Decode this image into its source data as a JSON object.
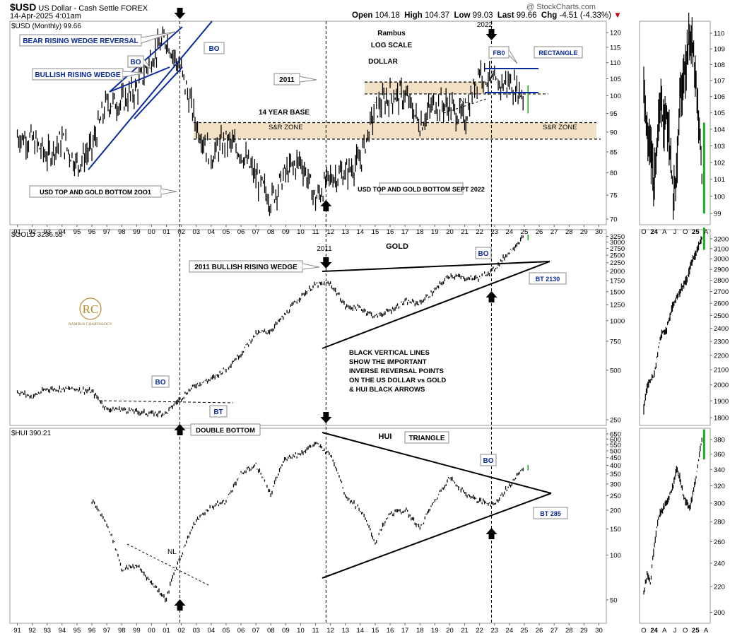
{
  "header": {
    "symbol": "$USD",
    "description": "US Dollar - Cash Settle  FOREX",
    "date": "14-Apr-2025 4:01am",
    "quote_open_label": "Open",
    "quote_open": "104.18",
    "quote_high_label": "High",
    "quote_high": "104.37",
    "quote_low_label": "Low",
    "quote_low": "99.03",
    "quote_last_label": "Last",
    "quote_last": "99.66",
    "quote_chg_label": "Chg",
    "quote_chg": "-4.51 (-4.33%)",
    "chg_arrow": "▼",
    "watermark": "@ StockCharts.com"
  },
  "colors": {
    "candle": "#000000",
    "annotation_blue": "#0a2a9c",
    "zone_fill": "#f3e1c6",
    "up_bar": "#22aa22",
    "down_bar": "#22aa22"
  },
  "logo": {
    "letters": "RC",
    "text": "RAMBUS CHARTOLOGY"
  },
  "chart_data": [
    {
      "type": "candlestick",
      "panel": "USD monthly",
      "title": "$USD (Monthly) 99.66",
      "scale": "log",
      "ylim": [
        70,
        122
      ],
      "y_ticks": [
        "120",
        "115",
        "110",
        "105",
        "100",
        "95",
        "90",
        "85",
        "80",
        "75",
        "70"
      ],
      "x_ticks": [
        "91",
        "92",
        "93",
        "94",
        "95",
        "96",
        "97",
        "98",
        "99",
        "00",
        "01",
        "02",
        "03",
        "04",
        "05",
        "06",
        "07",
        "08",
        "09",
        "10",
        "11",
        "12",
        "13",
        "14",
        "15",
        "16",
        "17",
        "18",
        "19",
        "20",
        "21",
        "22",
        "23",
        "24",
        "25",
        "26",
        "27",
        "28",
        "29",
        "30"
      ],
      "x": [
        1991,
        1992,
        1993,
        1994,
        1995,
        1996,
        1997,
        1998,
        1999,
        2000,
        2001,
        2002,
        2003,
        2004,
        2005,
        2006,
        2007,
        2008,
        2009,
        2010,
        2011,
        2012,
        2013,
        2014,
        2015,
        2016,
        2017,
        2018,
        2019,
        2020,
        2021,
        2022,
        2023,
        2024,
        2025
      ],
      "values": [
        89,
        88,
        84,
        88,
        82,
        86,
        98,
        98,
        102,
        112,
        118,
        107,
        92,
        84,
        88,
        85,
        79,
        74,
        80,
        83,
        74,
        79,
        80,
        83,
        96,
        100,
        100,
        92,
        98,
        97,
        93,
        108,
        103,
        104,
        100
      ],
      "annotations": {
        "center": [
          "Rambus",
          "LOG SCALE",
          "DOLLAR"
        ],
        "callouts": [
          "BEAR RISING WEDGE REVERSAL",
          "BO",
          "BULLISH RISING WEDGE",
          "BO",
          "2011",
          "USD TOP AND GOLD BOTTOM 2OO1",
          "USD TOP AND GOLD BOTTOM  SEPT 2022",
          "FB0",
          "RECTANGLE"
        ],
        "labels": [
          "2022",
          "NL",
          "14 YEAR BASE",
          "S&R ZONE",
          "S&R ZONE"
        ]
      }
    },
    {
      "type": "candlestick",
      "panel": "USD weekly inset",
      "scale": "log",
      "ylim": [
        98.6,
        110.5
      ],
      "y_ticks": [
        "110",
        "109",
        "108",
        "107",
        "106",
        "105",
        "104",
        "103",
        "102",
        "101",
        "100",
        "99"
      ],
      "x_ticks": [
        "O",
        "24",
        "A",
        "J",
        "O",
        "25",
        "A"
      ],
      "values": [
        106,
        104,
        103,
        101,
        103,
        106,
        104,
        105,
        103,
        100,
        101,
        106,
        107,
        108,
        110,
        109,
        107,
        104,
        100
      ]
    },
    {
      "type": "candlestick",
      "panel": "GOLD monthly",
      "title": "$GOLD 3236.55",
      "scale": "log",
      "ylim": [
        250,
        3300
      ],
      "y_ticks": [
        "3250",
        "3000",
        "2750",
        "2500",
        "2250",
        "2000",
        "1750",
        "1500",
        "1250",
        "1000",
        "750",
        "500",
        "250"
      ],
      "x": [
        1991,
        1992,
        1993,
        1994,
        1995,
        1996,
        1997,
        1998,
        1999,
        2000,
        2001,
        2002,
        2003,
        2004,
        2005,
        2006,
        2007,
        2008,
        2009,
        2010,
        2011,
        2012,
        2013,
        2014,
        2015,
        2016,
        2017,
        2018,
        2019,
        2020,
        2021,
        2022,
        2023,
        2024,
        2025
      ],
      "values": [
        370,
        345,
        385,
        385,
        385,
        370,
        290,
        290,
        280,
        272,
        275,
        340,
        410,
        440,
        510,
        630,
        830,
        870,
        1090,
        1400,
        1650,
        1670,
        1220,
        1190,
        1060,
        1150,
        1300,
        1280,
        1520,
        1890,
        1810,
        1820,
        2060,
        2620,
        3236
      ],
      "annotations": {
        "center": [
          "2011",
          "GOLD"
        ],
        "callouts": [
          "2011 BULLISH RISING WEDGE",
          "BO",
          "BT 2130",
          "BO",
          "BT",
          "DOUBLE BOTTOM"
        ],
        "text_block": [
          "BLACK VERTICAL LINES",
          "SHOW THE IMPORTANT",
          "INVERSE REVERSAL POINTS",
          "ON THE US DOLLAR vs GOLD",
          "& HUI BLACK ARROWS"
        ]
      }
    },
    {
      "type": "candlestick",
      "panel": "GOLD weekly inset",
      "scale": "log",
      "ylim": [
        1780,
        3250
      ],
      "y_ticks": [
        "3200",
        "3100",
        "3000",
        "2900",
        "2800",
        "2700",
        "2600",
        "2500",
        "2400",
        "2300",
        "2200",
        "2100",
        "2000",
        "1900",
        "1800"
      ],
      "x_ticks": [
        "O",
        "24",
        "A",
        "J",
        "O",
        "25",
        "A"
      ],
      "values": [
        1850,
        1980,
        2030,
        2050,
        2180,
        2330,
        2380,
        2400,
        2500,
        2600,
        2650,
        2700,
        2750,
        2800,
        2900,
        3000,
        3050,
        3150,
        3236
      ]
    },
    {
      "type": "candlestick",
      "panel": "HUI monthly",
      "title": "$HUI 390.21",
      "scale": "log",
      "ylim": [
        38,
        650
      ],
      "y_ticks": [
        "650",
        "600",
        "550",
        "500",
        "450",
        "400",
        "350",
        "300",
        "250",
        "200",
        "150",
        "100",
        "50"
      ],
      "x_ticks": [
        "91",
        "92",
        "93",
        "94",
        "95",
        "96",
        "97",
        "98",
        "99",
        "00",
        "01",
        "02",
        "03",
        "04",
        "05",
        "06",
        "07",
        "08",
        "09",
        "10",
        "11",
        "12",
        "13",
        "14",
        "15",
        "16",
        "17",
        "18",
        "19",
        "20",
        "21",
        "22",
        "23",
        "24",
        "25",
        "26",
        "27",
        "28",
        "29",
        "30"
      ],
      "x": [
        1996,
        1997,
        1998,
        1999,
        2000,
        2001,
        2002,
        2003,
        2004,
        2005,
        2006,
        2007,
        2008,
        2009,
        2010,
        2011,
        2012,
        2013,
        2014,
        2015,
        2016,
        2017,
        2018,
        2019,
        2020,
        2021,
        2022,
        2023,
        2024,
        2025
      ],
      "values": [
        230,
        160,
        80,
        85,
        65,
        50,
        100,
        170,
        210,
        230,
        350,
        400,
        250,
        450,
        480,
        560,
        470,
        250,
        200,
        120,
        190,
        200,
        150,
        230,
        330,
        260,
        230,
        220,
        290,
        390
      ],
      "annotations": {
        "center": [
          "HUI"
        ],
        "callouts": [
          "TRIANGLE",
          "BO",
          "BT 285"
        ],
        "labels": [
          "NL"
        ]
      }
    },
    {
      "type": "candlestick",
      "panel": "HUI weekly inset",
      "scale": "log",
      "ylim": [
        195,
        390
      ],
      "y_ticks": [
        "380",
        "360",
        "340",
        "320",
        "300",
        "280",
        "260",
        "240",
        "220",
        "200"
      ],
      "x_ticks": [
        "O",
        "24",
        "A",
        "J",
        "O",
        "25",
        "A"
      ],
      "values": [
        215,
        230,
        222,
        250,
        275,
        290,
        295,
        300,
        310,
        320,
        340,
        330,
        310,
        300,
        295,
        310,
        330,
        360,
        385
      ]
    }
  ]
}
